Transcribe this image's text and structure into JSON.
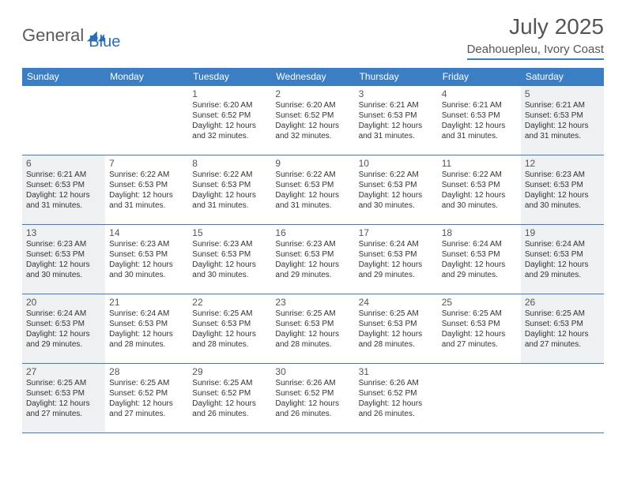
{
  "brand": {
    "part1": "General",
    "part2": "Blue"
  },
  "title": "July 2025",
  "location": "Deahouepleu, Ivory Coast",
  "colors": {
    "header_bg": "#3b7ec4",
    "header_text": "#ffffff",
    "weekend_bg": "#eef0f2",
    "border": "#3b7ec4",
    "text": "#333333",
    "title_text": "#555555"
  },
  "font": {
    "family": "Arial",
    "day_num_size": 12,
    "day_info_size": 10,
    "header_size": 12,
    "title_size": 28,
    "location_size": 15
  },
  "weekdays": [
    "Sunday",
    "Monday",
    "Tuesday",
    "Wednesday",
    "Thursday",
    "Friday",
    "Saturday"
  ],
  "grid": [
    [
      null,
      null,
      {
        "n": "1",
        "sr": "6:20 AM",
        "ss": "6:52 PM",
        "dl": "12 hours and 32 minutes."
      },
      {
        "n": "2",
        "sr": "6:20 AM",
        "ss": "6:52 PM",
        "dl": "12 hours and 32 minutes."
      },
      {
        "n": "3",
        "sr": "6:21 AM",
        "ss": "6:53 PM",
        "dl": "12 hours and 31 minutes."
      },
      {
        "n": "4",
        "sr": "6:21 AM",
        "ss": "6:53 PM",
        "dl": "12 hours and 31 minutes."
      },
      {
        "n": "5",
        "sr": "6:21 AM",
        "ss": "6:53 PM",
        "dl": "12 hours and 31 minutes."
      }
    ],
    [
      {
        "n": "6",
        "sr": "6:21 AM",
        "ss": "6:53 PM",
        "dl": "12 hours and 31 minutes."
      },
      {
        "n": "7",
        "sr": "6:22 AM",
        "ss": "6:53 PM",
        "dl": "12 hours and 31 minutes."
      },
      {
        "n": "8",
        "sr": "6:22 AM",
        "ss": "6:53 PM",
        "dl": "12 hours and 31 minutes."
      },
      {
        "n": "9",
        "sr": "6:22 AM",
        "ss": "6:53 PM",
        "dl": "12 hours and 31 minutes."
      },
      {
        "n": "10",
        "sr": "6:22 AM",
        "ss": "6:53 PM",
        "dl": "12 hours and 30 minutes."
      },
      {
        "n": "11",
        "sr": "6:22 AM",
        "ss": "6:53 PM",
        "dl": "12 hours and 30 minutes."
      },
      {
        "n": "12",
        "sr": "6:23 AM",
        "ss": "6:53 PM",
        "dl": "12 hours and 30 minutes."
      }
    ],
    [
      {
        "n": "13",
        "sr": "6:23 AM",
        "ss": "6:53 PM",
        "dl": "12 hours and 30 minutes."
      },
      {
        "n": "14",
        "sr": "6:23 AM",
        "ss": "6:53 PM",
        "dl": "12 hours and 30 minutes."
      },
      {
        "n": "15",
        "sr": "6:23 AM",
        "ss": "6:53 PM",
        "dl": "12 hours and 30 minutes."
      },
      {
        "n": "16",
        "sr": "6:23 AM",
        "ss": "6:53 PM",
        "dl": "12 hours and 29 minutes."
      },
      {
        "n": "17",
        "sr": "6:24 AM",
        "ss": "6:53 PM",
        "dl": "12 hours and 29 minutes."
      },
      {
        "n": "18",
        "sr": "6:24 AM",
        "ss": "6:53 PM",
        "dl": "12 hours and 29 minutes."
      },
      {
        "n": "19",
        "sr": "6:24 AM",
        "ss": "6:53 PM",
        "dl": "12 hours and 29 minutes."
      }
    ],
    [
      {
        "n": "20",
        "sr": "6:24 AM",
        "ss": "6:53 PM",
        "dl": "12 hours and 29 minutes."
      },
      {
        "n": "21",
        "sr": "6:24 AM",
        "ss": "6:53 PM",
        "dl": "12 hours and 28 minutes."
      },
      {
        "n": "22",
        "sr": "6:25 AM",
        "ss": "6:53 PM",
        "dl": "12 hours and 28 minutes."
      },
      {
        "n": "23",
        "sr": "6:25 AM",
        "ss": "6:53 PM",
        "dl": "12 hours and 28 minutes."
      },
      {
        "n": "24",
        "sr": "6:25 AM",
        "ss": "6:53 PM",
        "dl": "12 hours and 28 minutes."
      },
      {
        "n": "25",
        "sr": "6:25 AM",
        "ss": "6:53 PM",
        "dl": "12 hours and 27 minutes."
      },
      {
        "n": "26",
        "sr": "6:25 AM",
        "ss": "6:53 PM",
        "dl": "12 hours and 27 minutes."
      }
    ],
    [
      {
        "n": "27",
        "sr": "6:25 AM",
        "ss": "6:53 PM",
        "dl": "12 hours and 27 minutes."
      },
      {
        "n": "28",
        "sr": "6:25 AM",
        "ss": "6:52 PM",
        "dl": "12 hours and 27 minutes."
      },
      {
        "n": "29",
        "sr": "6:25 AM",
        "ss": "6:52 PM",
        "dl": "12 hours and 26 minutes."
      },
      {
        "n": "30",
        "sr": "6:26 AM",
        "ss": "6:52 PM",
        "dl": "12 hours and 26 minutes."
      },
      {
        "n": "31",
        "sr": "6:26 AM",
        "ss": "6:52 PM",
        "dl": "12 hours and 26 minutes."
      },
      null,
      null
    ]
  ],
  "labels": {
    "sunrise": "Sunrise:",
    "sunset": "Sunset:",
    "daylight": "Daylight:"
  }
}
